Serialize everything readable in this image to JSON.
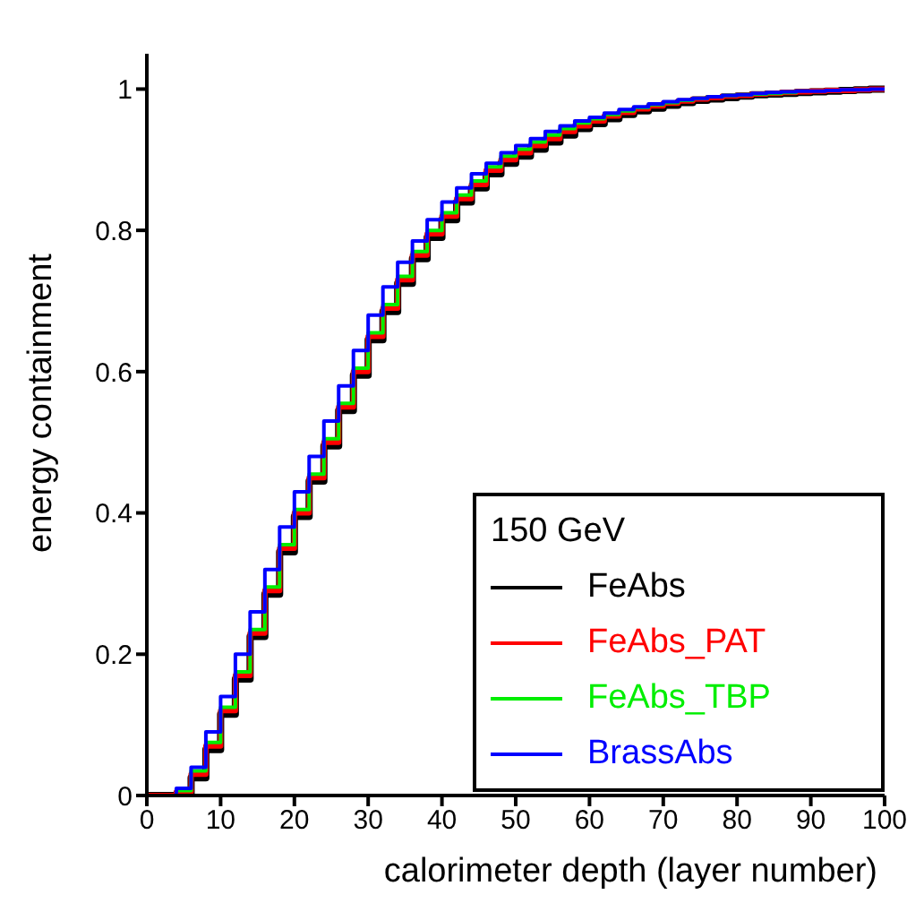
{
  "chart_data": {
    "type": "step",
    "xlabel": "calorimeter depth (layer number)",
    "ylabel": "energy containment",
    "legend_title": "150 GeV",
    "legend": "bottom right",
    "xlim": [
      0,
      100
    ],
    "xticks": [
      0,
      10,
      20,
      30,
      40,
      50,
      60,
      70,
      80,
      90,
      100
    ],
    "ylim": [
      0,
      1.05
    ],
    "yticks": [
      0,
      0.2,
      0.4,
      0.6,
      0.8,
      1
    ],
    "x": [
      0,
      2,
      4,
      6,
      8,
      10,
      12,
      14,
      16,
      18,
      20,
      22,
      24,
      26,
      28,
      30,
      32,
      34,
      36,
      38,
      40,
      42,
      44,
      46,
      48,
      50,
      52,
      54,
      56,
      58,
      60,
      62,
      64,
      66,
      68,
      70,
      72,
      74,
      76,
      78,
      80,
      82,
      84,
      86,
      88,
      90,
      92,
      94,
      96,
      98,
      100
    ],
    "series": [
      {
        "name": "FeAbs",
        "color": "#000000",
        "values": [
          0,
          0,
          0.002,
          0.025,
          0.065,
          0.115,
          0.165,
          0.225,
          0.285,
          0.345,
          0.395,
          0.445,
          0.495,
          0.545,
          0.595,
          0.645,
          0.685,
          0.725,
          0.76,
          0.79,
          0.815,
          0.84,
          0.86,
          0.88,
          0.895,
          0.905,
          0.915,
          0.925,
          0.935,
          0.944,
          0.951,
          0.958,
          0.964,
          0.969,
          0.973,
          0.977,
          0.981,
          0.984,
          0.986,
          0.988,
          0.99,
          0.992,
          0.993,
          0.994,
          0.995,
          0.996,
          0.997,
          0.998,
          0.999,
          1,
          1
        ]
      },
      {
        "name": "FeAbs_PAT",
        "color": "#ff0000",
        "values": [
          0,
          0,
          0.005,
          0.03,
          0.07,
          0.12,
          0.17,
          0.23,
          0.29,
          0.35,
          0.4,
          0.45,
          0.5,
          0.55,
          0.6,
          0.65,
          0.69,
          0.73,
          0.765,
          0.795,
          0.82,
          0.845,
          0.865,
          0.885,
          0.9,
          0.91,
          0.92,
          0.93,
          0.94,
          0.948,
          0.955,
          0.962,
          0.967,
          0.972,
          0.976,
          0.98,
          0.983,
          0.986,
          0.988,
          0.99,
          0.991,
          0.993,
          0.994,
          0.995,
          0.996,
          0.997,
          0.998,
          0.998,
          0.999,
          1,
          1
        ]
      },
      {
        "name": "FeAbs_TBP",
        "color": "#00ee00",
        "values": [
          0,
          0,
          0.007,
          0.035,
          0.075,
          0.125,
          0.175,
          0.235,
          0.295,
          0.355,
          0.405,
          0.455,
          0.505,
          0.555,
          0.605,
          0.655,
          0.695,
          0.735,
          0.77,
          0.8,
          0.825,
          0.85,
          0.87,
          0.89,
          0.905,
          0.915,
          0.925,
          0.935,
          0.944,
          0.952,
          0.958,
          0.964,
          0.969,
          0.974,
          0.978,
          0.981,
          0.984,
          0.987,
          0.989,
          0.991,
          0.992,
          0.993,
          0.994,
          0.995,
          0.996,
          null,
          null,
          null,
          null,
          null,
          null
        ]
      },
      {
        "name": "BrassAbs",
        "color": "#0000ff",
        "values": [
          0,
          0,
          0.01,
          0.04,
          0.09,
          0.14,
          0.2,
          0.26,
          0.32,
          0.38,
          0.43,
          0.48,
          0.53,
          0.58,
          0.63,
          0.68,
          0.72,
          0.755,
          0.785,
          0.815,
          0.84,
          0.86,
          0.88,
          0.895,
          0.91,
          0.92,
          0.93,
          0.94,
          0.948,
          0.955,
          0.96,
          0.966,
          0.971,
          0.975,
          0.979,
          0.982,
          0.985,
          0.987,
          0.989,
          0.991,
          0.992,
          0.994,
          0.995,
          0.996,
          0.997,
          0.997,
          0.998,
          0.999,
          0.999,
          1,
          1
        ]
      }
    ]
  }
}
